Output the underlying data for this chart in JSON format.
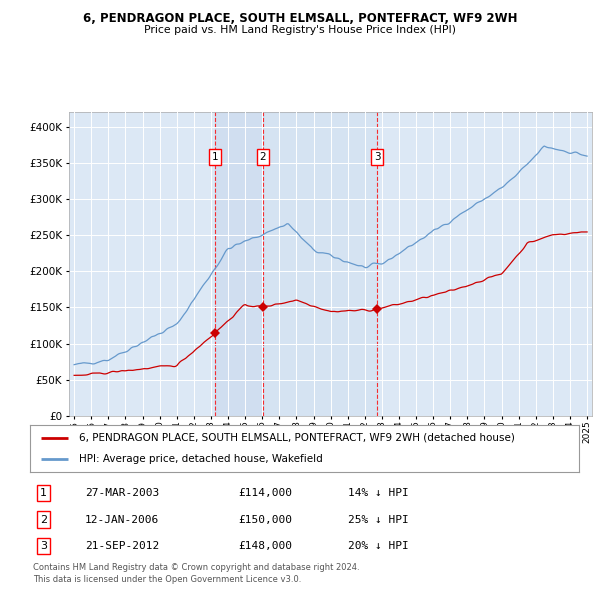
{
  "title1": "6, PENDRAGON PLACE, SOUTH ELMSALL, PONTEFRACT, WF9 2WH",
  "title2": "Price paid vs. HM Land Registry's House Price Index (HPI)",
  "background_color": "#dce8f5",
  "plot_bg": "#dce8f5",
  "sale_year_floats": [
    2003.24,
    2006.04,
    2012.72
  ],
  "sale_prices": [
    114000,
    150000,
    148000
  ],
  "sale_labels": [
    "1",
    "2",
    "3"
  ],
  "legend_entries": [
    "6, PENDRAGON PLACE, SOUTH ELMSALL, PONTEFRACT, WF9 2WH (detached house)",
    "HPI: Average price, detached house, Wakefield"
  ],
  "table_rows": [
    [
      "1",
      "27-MAR-2003",
      "£114,000",
      "14% ↓ HPI"
    ],
    [
      "2",
      "12-JAN-2006",
      "£150,000",
      "25% ↓ HPI"
    ],
    [
      "3",
      "21-SEP-2012",
      "£148,000",
      "20% ↓ HPI"
    ]
  ],
  "footnote": "Contains HM Land Registry data © Crown copyright and database right 2024.\nThis data is licensed under the Open Government Licence v3.0.",
  "ylim": [
    0,
    420000
  ],
  "yticks": [
    0,
    50000,
    100000,
    150000,
    200000,
    250000,
    300000,
    350000,
    400000
  ],
  "sale_color": "#cc0000",
  "hpi_color": "#6699cc",
  "shade_color": "#c8d8ee"
}
